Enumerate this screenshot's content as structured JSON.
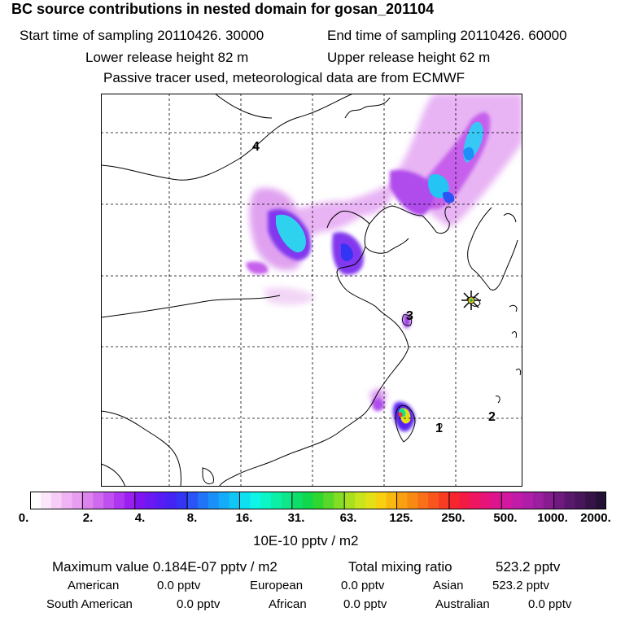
{
  "header": {
    "title": "BC  source contributions in nested domain for gosan_201104",
    "start_label": "Start time of sampling 20110426. 30000",
    "end_label": "End time of sampling 20110426. 60000",
    "lower_label": "Lower release height   82 m",
    "upper_label": "Upper release height   62 m",
    "note": "Passive tracer used, meteorological data are from ECMWF"
  },
  "map": {
    "region_labels": [
      "4",
      "3",
      "2",
      "1"
    ],
    "receptor_icon": "star-marker-icon"
  },
  "colorbar": {
    "tick_labels": [
      "0.",
      "2.",
      "4.",
      "8.",
      "16.",
      "31.",
      "63.",
      "125.",
      "250.",
      "500.",
      "1000.",
      "2000."
    ],
    "colors": [
      "#ffffff",
      "#fbe6fb",
      "#f6cdf6",
      "#f0b3f3",
      "#e89ef0",
      "#dc83ee",
      "#cf6aee",
      "#c04ff0",
      "#ae36f0",
      "#9b1ff0",
      "#7f14f0",
      "#6a19f3",
      "#561ef5",
      "#4324f5",
      "#3434f5",
      "#2a54f7",
      "#2074f8",
      "#1a90f8",
      "#14acf8",
      "#10c6f5",
      "#0ee0f0",
      "#0df5e6",
      "#0cf5c6",
      "#0cefa6",
      "#0de68a",
      "#0edd6a",
      "#10d84a",
      "#30d630",
      "#5ad82a",
      "#84dc24",
      "#a8e020",
      "#c8e41c",
      "#e4e018",
      "#f8d010",
      "#f8b810",
      "#f8a010",
      "#f88a14",
      "#f87018",
      "#f8561c",
      "#f83c24",
      "#f8242e",
      "#f41a46",
      "#ee1660",
      "#e6147a",
      "#dc148e",
      "#d018a0",
      "#c01ca8",
      "#ae1ea8",
      "#9a1e9e",
      "#861c90",
      "#701a80",
      "#5a186c",
      "#48165a",
      "#361448",
      "#241236"
    ],
    "units": "10E-10 pptv / m2"
  },
  "footer": {
    "max_label": "Maximum value  0.184E-07 pptv / m2",
    "total_label": "Total mixing ratio",
    "total_value": "523.2 pptv",
    "sources": [
      {
        "name": "American",
        "value": "0.0 pptv"
      },
      {
        "name": "European",
        "value": "0.0 pptv"
      },
      {
        "name": "Asian",
        "value": "523.2 pptv"
      },
      {
        "name": "South American",
        "value": "0.0 pptv"
      },
      {
        "name": "African",
        "value": "0.0 pptv"
      },
      {
        "name": "Australian",
        "value": "0.0 pptv"
      }
    ]
  }
}
